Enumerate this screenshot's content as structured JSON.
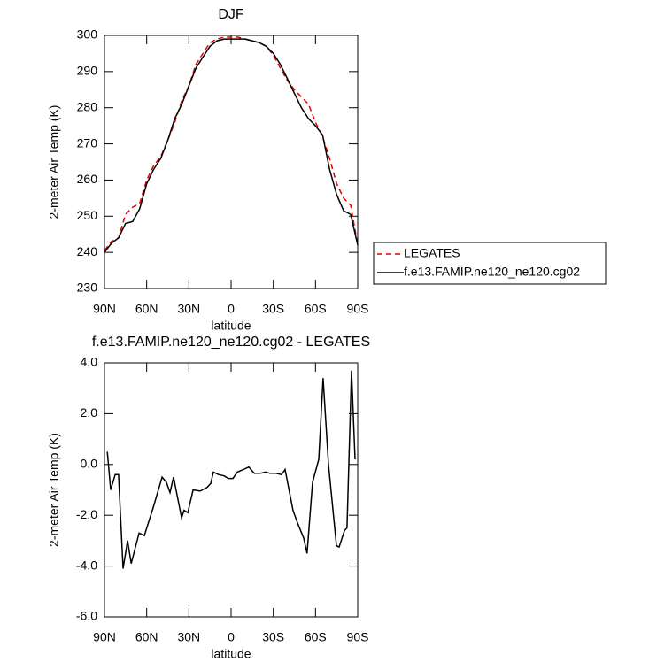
{
  "chart_data": [
    {
      "type": "line",
      "title": "DJF",
      "x_label": "latitude",
      "y_label": "2-meter Air Temp (K)",
      "x": [
        90,
        85,
        80,
        75,
        70,
        65,
        60,
        55,
        50,
        45,
        40,
        35,
        30,
        25,
        20,
        15,
        10,
        5,
        0,
        -5,
        -10,
        -15,
        -20,
        -25,
        -30,
        -35,
        -40,
        -45,
        -50,
        -55,
        -60,
        -65,
        -70,
        -75,
        -80,
        -85,
        -90
      ],
      "series": [
        {
          "name": "LEGATES",
          "color": "#e00000",
          "dash": true,
          "values": [
            240.5,
            243,
            244,
            250.5,
            252.5,
            253.5,
            260,
            264,
            266.5,
            271,
            276,
            282,
            286,
            292,
            295,
            298,
            299,
            299.5,
            299.5,
            299.5,
            299,
            298.5,
            298,
            297,
            294.5,
            291,
            287.5,
            285,
            283,
            281,
            276,
            272,
            266,
            259,
            255,
            253,
            242
          ]
        },
        {
          "name": "f.e13.FAMIP.ne120_ne120.cg02",
          "color": "#000000",
          "dash": false,
          "values": [
            240,
            242.5,
            244,
            248,
            248.5,
            252,
            259,
            263,
            266,
            271,
            277,
            281,
            286,
            291,
            294,
            297,
            298.5,
            299,
            299,
            299,
            299,
            298.5,
            298,
            297,
            295,
            292,
            288,
            284,
            280,
            277,
            275,
            272.5,
            263,
            256,
            251.5,
            250.5,
            242
          ]
        }
      ],
      "xlim": [
        90,
        -90
      ],
      "xticks": [
        {
          "value": 90,
          "label": "90N"
        },
        {
          "value": 60,
          "label": "60N"
        },
        {
          "value": 30,
          "label": "30N"
        },
        0,
        {
          "value": -30,
          "label": "30S"
        },
        {
          "value": -60,
          "label": "60S"
        },
        {
          "value": -90,
          "label": "90S"
        }
      ],
      "ylim": [
        230,
        300
      ],
      "yticks": [
        230,
        240,
        250,
        260,
        270,
        280,
        290,
        300
      ],
      "legend": "right"
    },
    {
      "type": "line",
      "title": "f.e13.FAMIP.ne120_ne120.cg02 - LEGATES",
      "x_label": "latitude",
      "y_label": "2-meter Air Temp (K)",
      "x": [
        88,
        85.6,
        82.4,
        80,
        76.8,
        73.6,
        71,
        65.4,
        61.7,
        55.4,
        49,
        46,
        43.4,
        40.9,
        35.2,
        33.4,
        30.8,
        27,
        22,
        17,
        14.5,
        12.6,
        8.8,
        5,
        1.9,
        -1.3,
        -4.4,
        -8.8,
        -12.6,
        -16.4,
        -20.8,
        -24.5,
        -27.7,
        -32,
        -35.9,
        -38.4,
        -44,
        -47.2,
        -51.6,
        -54,
        -57.9,
        -62.3,
        -65.4,
        -69.2,
        -74.9,
        -76.8,
        -80.6,
        -82.4,
        -85.6,
        -88.1
      ],
      "values": [
        0.5,
        -1.0,
        -0.4,
        -0.4,
        -4.1,
        -3.0,
        -3.9,
        -2.7,
        -2.8,
        -1.7,
        -0.5,
        -0.7,
        -1.1,
        -0.5,
        -2.1,
        -1.8,
        -1.9,
        -1.0,
        -1.05,
        -0.9,
        -0.75,
        -0.3,
        -0.4,
        -0.45,
        -0.55,
        -0.55,
        -0.3,
        -0.2,
        -0.1,
        -0.35,
        -0.35,
        -0.3,
        -0.35,
        -0.35,
        -0.4,
        -0.2,
        -1.8,
        -2.3,
        -2.9,
        -3.5,
        -0.7,
        0.2,
        3.4,
        0.0,
        -3.2,
        -3.25,
        -2.6,
        -2.5,
        3.7,
        0.2
      ],
      "color": "#000000",
      "xlim": [
        90,
        -90
      ],
      "xticks": [
        {
          "value": 90,
          "label": "90N"
        },
        {
          "value": 60,
          "label": "60N"
        },
        {
          "value": 30,
          "label": "30N"
        },
        0,
        {
          "value": -30,
          "label": "30S"
        },
        {
          "value": -60,
          "label": "60S"
        },
        {
          "value": -90,
          "label": "90S"
        }
      ],
      "ylim": [
        -6,
        4
      ],
      "yticks": [
        {
          "value": -6,
          "label": "-6.0"
        },
        {
          "value": -4,
          "label": "-4.0"
        },
        {
          "value": -2,
          "label": "-2.0"
        },
        {
          "value": 0,
          "label": "0.0"
        },
        {
          "value": 2,
          "label": "2.0"
        },
        {
          "value": 4,
          "label": "4.0"
        }
      ]
    }
  ]
}
